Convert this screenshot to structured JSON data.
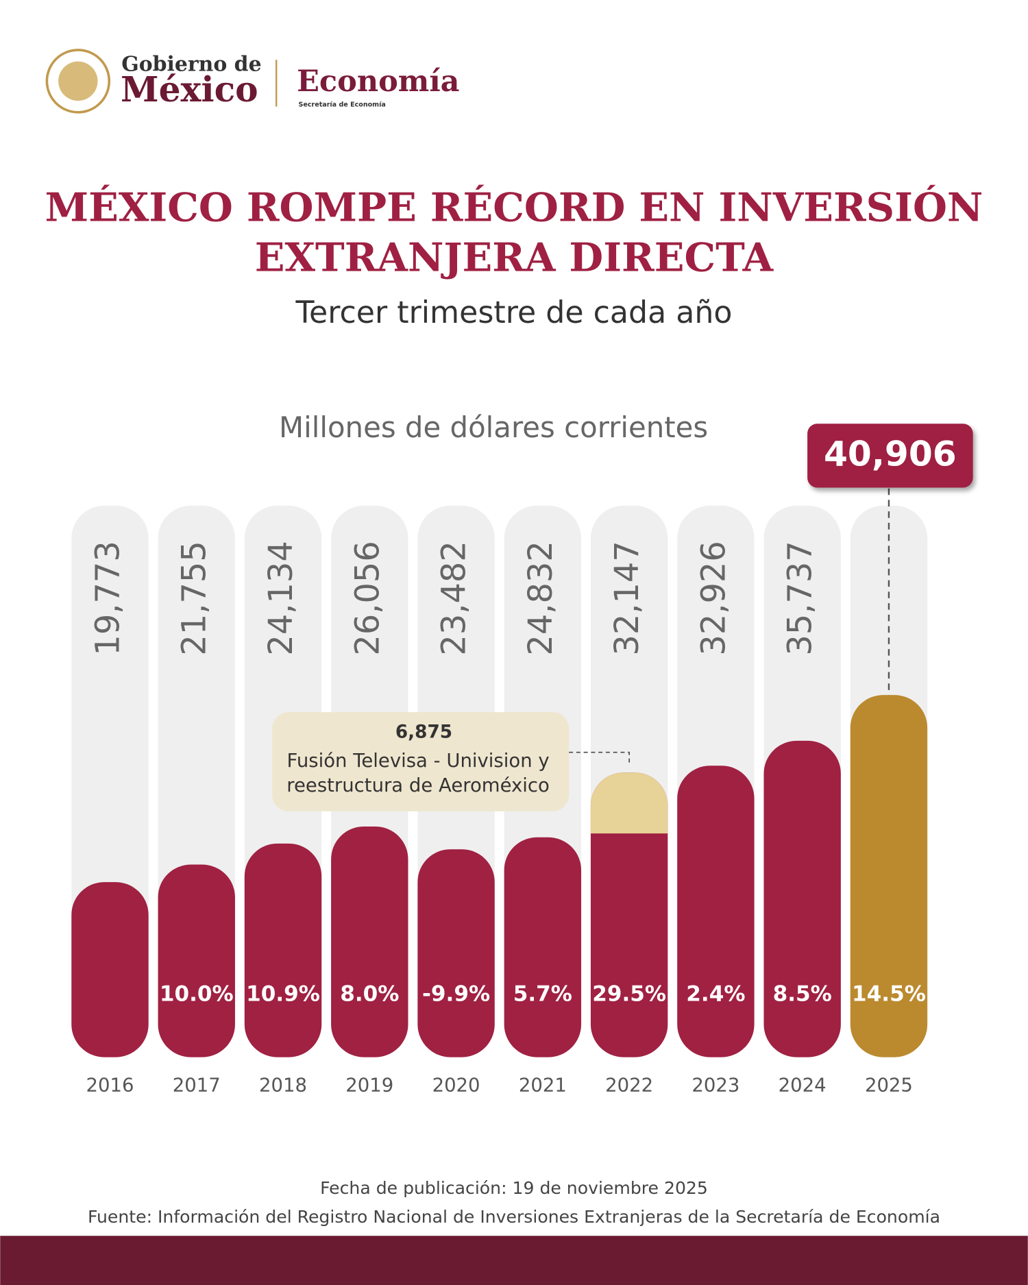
{
  "header": {
    "gov_line1": "Gobierno de",
    "gov_line2": "México",
    "agency": "Economía",
    "agency_sub": "Secretaría de Economía"
  },
  "chart_data": {
    "type": "bar",
    "title": [
      "MÉXICO ROMPE RÉCORD EN INVERSIÓN",
      "EXTRANJERA DIRECTA"
    ],
    "subtitle": "Tercer trimestre de cada año",
    "y_label": "Millones de dólares corrientes",
    "categories": [
      "2016",
      "2017",
      "2018",
      "2019",
      "2020",
      "2021",
      "2022",
      "2023",
      "2024",
      "2025"
    ],
    "values": [
      19773,
      21755,
      24134,
      26056,
      23482,
      24832,
      32147,
      32926,
      35737,
      40906
    ],
    "value_labels": [
      "19,773",
      "21,755",
      "24,134",
      "26,056",
      "23,482",
      "24,832",
      "32,147",
      "32,926",
      "35,737",
      "40,906"
    ],
    "colors": [
      "#a02142",
      "#a02142",
      "#a02142",
      "#a02142",
      "#a02142",
      "#a02142",
      "#a02142",
      "#a02142",
      "#a02142",
      "#bb8a2f"
    ],
    "growth": {
      "values": [
        null,
        10.0,
        10.9,
        8.0,
        -9.9,
        5.7,
        29.5,
        2.4,
        8.5,
        14.5
      ],
      "value_labels": [
        null,
        "10.0%",
        "10.9%",
        "8.0%",
        "-9.9%",
        "5.7%",
        "29.5%",
        "2.4%",
        "8.5%",
        "14.5%"
      ]
    },
    "annotation": {
      "category": "2022",
      "value": 6875,
      "value_label": "6,875",
      "color": "#e7d297",
      "lines": [
        "Fusión Televisa - Univision y",
        "reestructura de Aeroméxico"
      ]
    },
    "ylim": [
      0,
      62300
    ]
  },
  "footer": {
    "date": "Fecha de publicación: 19 de noviembre 2025",
    "source": "Fuente: Información del Registro Nacional de Inversiones Extranjeras de la Secretaría de Economía"
  }
}
